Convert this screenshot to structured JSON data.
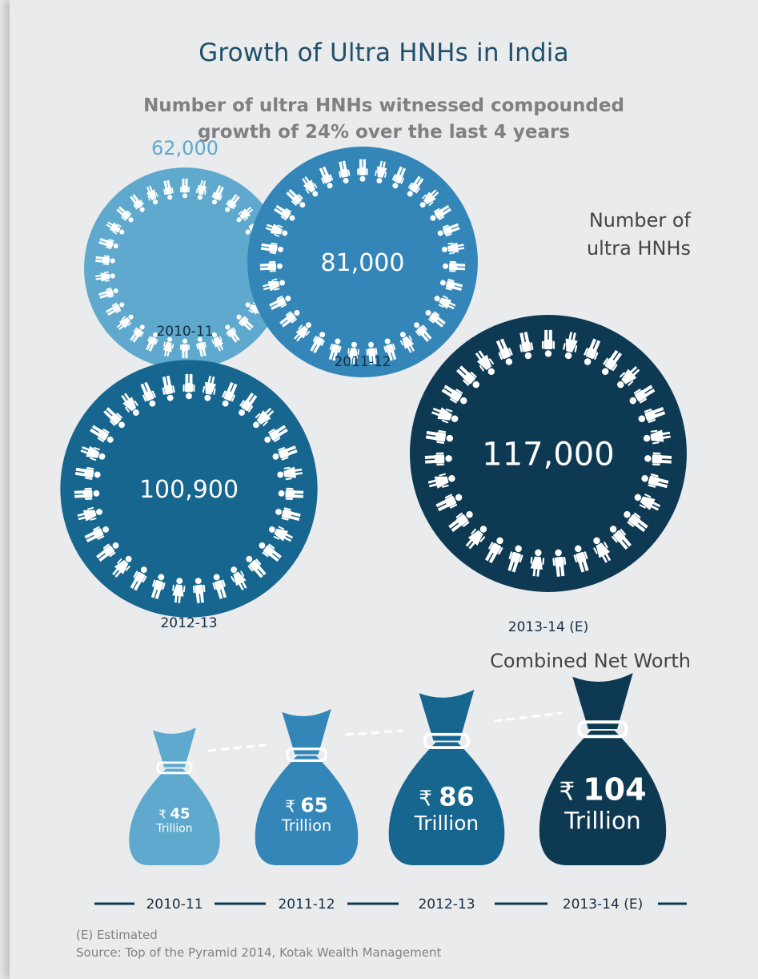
{
  "title": "Growth of Ultra HNHs in India",
  "subtitle_line1": "Number of ultra HNHs witnessed compounded",
  "subtitle_line2": "growth of 24% over the last 4 years",
  "hnh_label_line1": "Number of",
  "hnh_label_line2": "ultra HNHs",
  "net_worth_label": "Combined Net Worth",
  "footnote_estimated": "(E) Estimated",
  "footnote_source": "Source: Top of the Pyramid 2014, Kotak Wealth Management",
  "currency_symbol": "₹",
  "unit_word": "Trillion",
  "colors": {
    "c2010": "#5ea9cd",
    "c2011": "#3386b7",
    "c2012": "#17668f",
    "c2013": "#0e3953",
    "first_value_text": "#5ea9cd",
    "year_text": "#132f44",
    "timeline": "#0e3953"
  },
  "chart_data": [
    {
      "type": "bubble",
      "categories": [
        "2010-11",
        "2011-12",
        "2012-13",
        "2013-14 (E)"
      ],
      "values": [
        62000,
        81000,
        100900,
        117000
      ],
      "value_labels": [
        "62,000",
        "81,000",
        "100,900",
        "117,000"
      ]
    },
    {
      "type": "bar",
      "categories": [
        "2010-11",
        "2011-12",
        "2012-13",
        "2013-14 (E)"
      ],
      "values": [
        45,
        65,
        86,
        104
      ],
      "value_labels": [
        "45",
        "65",
        "86",
        "104"
      ]
    }
  ]
}
